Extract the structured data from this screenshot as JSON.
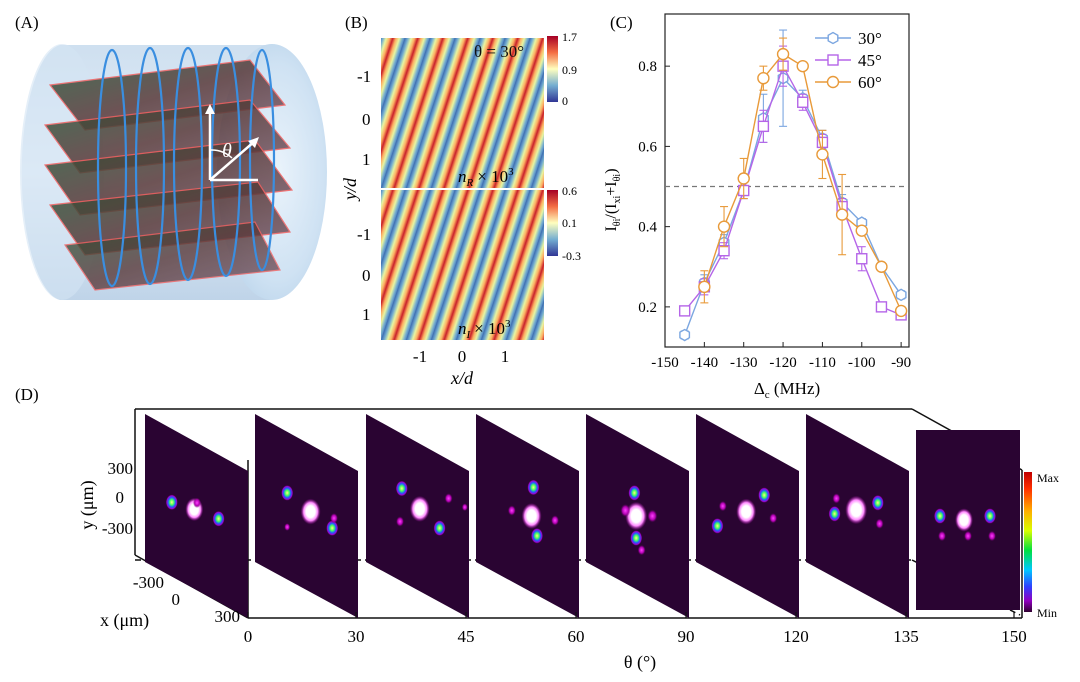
{
  "panels": {
    "a": {
      "label": "(A)",
      "angle_symbol": "θ"
    },
    "b": {
      "label": "(B)",
      "theta_annotation": "θ = 30°",
      "top_map": {
        "quantity": "n",
        "subscript": "R",
        "scale": "× 10",
        "exponent": "3",
        "colorbar_ticks": [
          "1.7",
          "0.9",
          "0"
        ]
      },
      "bottom_map": {
        "quantity": "n",
        "subscript": "I",
        "scale": "× 10",
        "exponent": "3",
        "colorbar_ticks": [
          "0.6",
          "0.1",
          "-0.3"
        ]
      },
      "xlabel": "x/d",
      "ylabel": "y/d",
      "x_ticks": [
        "-1",
        "0",
        "1"
      ],
      "y_ticks": [
        "-1",
        "0",
        "1"
      ]
    },
    "d": {
      "label": "(D)",
      "theta_axis_label": "θ (°)",
      "theta_ticks": [
        "0",
        "30",
        "45",
        "60",
        "90",
        "120",
        "135",
        "150"
      ],
      "y_axis_label": "y (μm)",
      "y_ticks": [
        "300",
        "0",
        "-300"
      ],
      "x_axis_label": "x (μm)",
      "x_ticks": [
        "-300",
        "0",
        "300"
      ],
      "colorbar_max": "Max",
      "colorbar_min": "Min"
    }
  },
  "chart_data": {
    "type": "line",
    "label": "(C)",
    "title": "",
    "xlabel": "Δc (MHz)",
    "ylabel": "Iθi/(Ixi+Iθi)",
    "x": [
      -145,
      -140,
      -135,
      -130,
      -125,
      -120,
      -115,
      -110,
      -105,
      -100,
      -95,
      -90
    ],
    "xlim": [
      -150,
      -88
    ],
    "ylim": [
      0.1,
      0.93
    ],
    "x_ticks": [
      -150,
      -140,
      -130,
      -120,
      -110,
      -100,
      -90
    ],
    "y_ticks": [
      0.2,
      0.4,
      0.6,
      0.8
    ],
    "reference_line": 0.5,
    "legend_position": "top-right",
    "series": [
      {
        "name": "30°",
        "color": "#7ba6e0",
        "marker": "hexagon",
        "x": [
          -145,
          -140,
          -135,
          -130,
          -125,
          -120,
          -115,
          -110,
          -105,
          -100,
          -95,
          -90
        ],
        "values": [
          0.13,
          0.26,
          0.36,
          0.49,
          0.67,
          0.77,
          0.72,
          0.62,
          0.46,
          0.41,
          0.3,
          0.23
        ],
        "errors": [
          0.01,
          0.02,
          0.02,
          0.02,
          0.06,
          0.12,
          0.02,
          0.02,
          0.02,
          0.01,
          0.01,
          0.01
        ]
      },
      {
        "name": "45°",
        "color": "#b565e8",
        "marker": "square",
        "x": [
          -145,
          -140,
          -135,
          -130,
          -125,
          -120,
          -115,
          -110,
          -105,
          -100,
          -95,
          -90
        ],
        "values": [
          0.19,
          0.25,
          0.34,
          0.49,
          0.65,
          0.8,
          0.71,
          0.61,
          0.45,
          0.32,
          0.2,
          0.18
        ],
        "errors": [
          0.01,
          0.02,
          0.02,
          0.02,
          0.04,
          0.05,
          0.02,
          0.02,
          0.02,
          0.03,
          0.01,
          0.01
        ]
      },
      {
        "name": "60°",
        "color": "#e89a3a",
        "marker": "circle",
        "x": [
          -140,
          -135,
          -130,
          -125,
          -120,
          -115,
          -110,
          -105,
          -100,
          -95,
          -90
        ],
        "values": [
          0.25,
          0.4,
          0.52,
          0.77,
          0.83,
          0.8,
          0.58,
          0.43,
          0.39,
          0.3,
          0.19
        ],
        "errors": [
          0.04,
          0.05,
          0.05,
          0.03,
          0.04,
          0.01,
          0.06,
          0.1,
          0.01,
          0.01,
          0.01
        ]
      }
    ]
  }
}
